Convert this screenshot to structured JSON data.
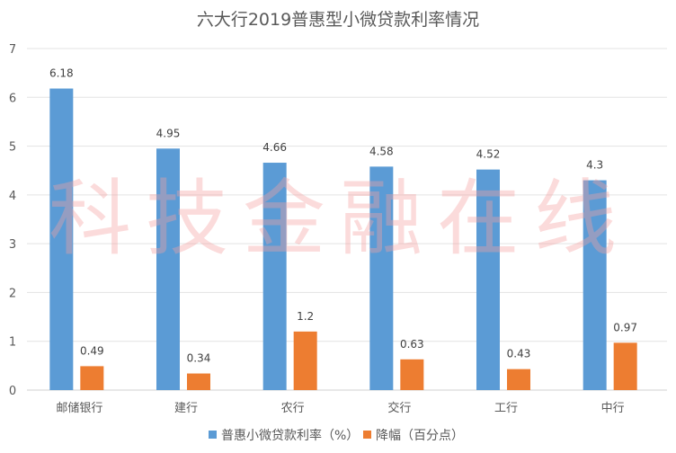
{
  "chart_data": {
    "type": "bar",
    "title": "六大行2019普惠型小微贷款利率情况",
    "categories": [
      "邮储银行",
      "建行",
      "农行",
      "交行",
      "工行",
      "中行"
    ],
    "series": [
      {
        "name": "普惠小微贷款利率（%）",
        "color": "#5B9BD5",
        "values": [
          6.18,
          4.95,
          4.66,
          4.58,
          4.52,
          4.3
        ]
      },
      {
        "name": "降幅（百分点）",
        "color": "#ED7D31",
        "values": [
          0.49,
          0.34,
          1.2,
          0.63,
          0.43,
          0.97
        ]
      }
    ],
    "ylim": [
      0,
      7
    ],
    "yticks": [
      0,
      1,
      2,
      3,
      4,
      5,
      6,
      7
    ],
    "grid": true,
    "legend": "bottom",
    "watermark": "科技金融在线"
  }
}
